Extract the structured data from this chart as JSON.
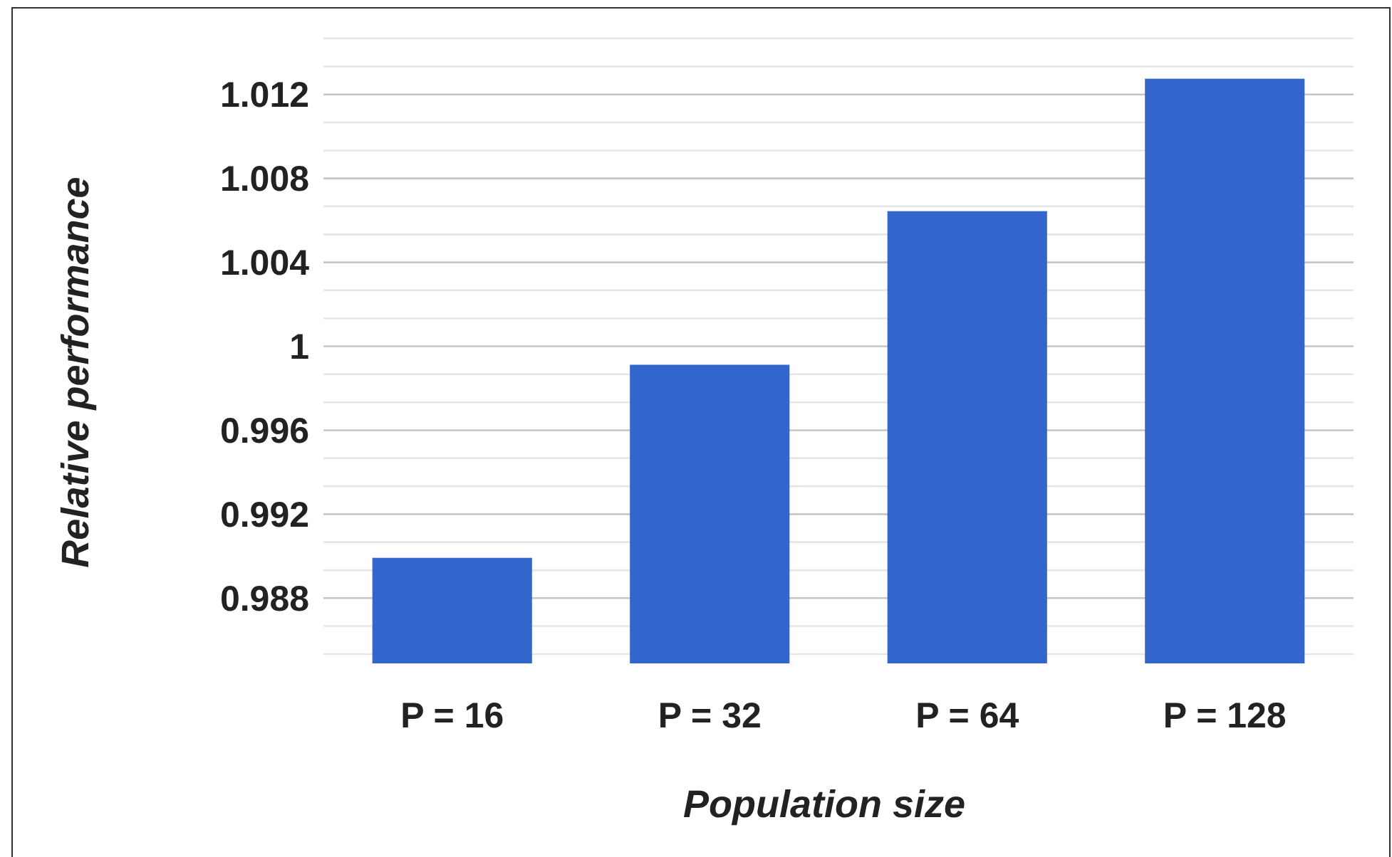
{
  "chart_data": {
    "type": "bar",
    "xlabel": "Population size",
    "ylabel": "Relative performance",
    "categories": [
      "P = 16",
      "P = 32",
      "P = 64",
      "P = 128"
    ],
    "values": [
      0.98992,
      0.99912,
      1.00644,
      1.01275
    ],
    "color": "#3366cc",
    "ylim": [
      0.98489,
      1.01467
    ],
    "yticks": [
      {
        "value": 0.98533,
        "label": null
      },
      {
        "value": 0.98667,
        "label": null
      },
      0.988,
      {
        "value": 0.98933,
        "label": null
      },
      {
        "value": 0.99067,
        "label": null
      },
      0.992,
      {
        "value": 0.99333,
        "label": null
      },
      {
        "value": 0.99467,
        "label": null
      },
      0.996,
      {
        "value": 0.99733,
        "label": null
      },
      {
        "value": 0.99867,
        "label": null
      },
      {
        "value": 1,
        "label": "1"
      },
      {
        "value": 1.00133,
        "label": null
      },
      {
        "value": 1.00267,
        "label": null
      },
      1.004,
      {
        "value": 1.00533,
        "label": null
      },
      {
        "value": 1.00667,
        "label": null
      },
      1.008,
      {
        "value": 1.00933,
        "label": null
      },
      {
        "value": 1.01067,
        "label": null
      },
      1.012,
      {
        "value": 1.01333,
        "label": null
      },
      {
        "value": 1.01467,
        "label": null
      }
    ],
    "grid": "y"
  }
}
